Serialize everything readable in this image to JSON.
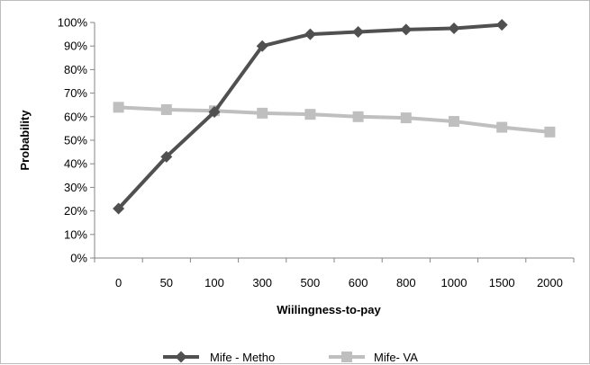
{
  "chart_data": {
    "type": "line",
    "title": "",
    "xlabel": "Wiilingness-to-pay",
    "ylabel": "Probability",
    "categories": [
      "0",
      "50",
      "100",
      "300",
      "500",
      "600",
      "800",
      "1000",
      "1500",
      "2000"
    ],
    "ylim": [
      0,
      100
    ],
    "yticks": [
      "0%",
      "10%",
      "20%",
      "30%",
      "40%",
      "50%",
      "60%",
      "70%",
      "80%",
      "90%",
      "100%"
    ],
    "grid": false,
    "legend_position": "bottom",
    "series": [
      {
        "name": "Mife - Metho",
        "marker": "diamond",
        "color": "#505050",
        "values": [
          21,
          43,
          62,
          90,
          95,
          96,
          97,
          97.5,
          99,
          null
        ]
      },
      {
        "name": "Mife- VA",
        "marker": "square",
        "color": "#bfbfbf",
        "values": [
          64,
          63,
          62.5,
          61.5,
          61,
          60,
          59.5,
          58,
          55.5,
          53.5
        ]
      }
    ]
  }
}
